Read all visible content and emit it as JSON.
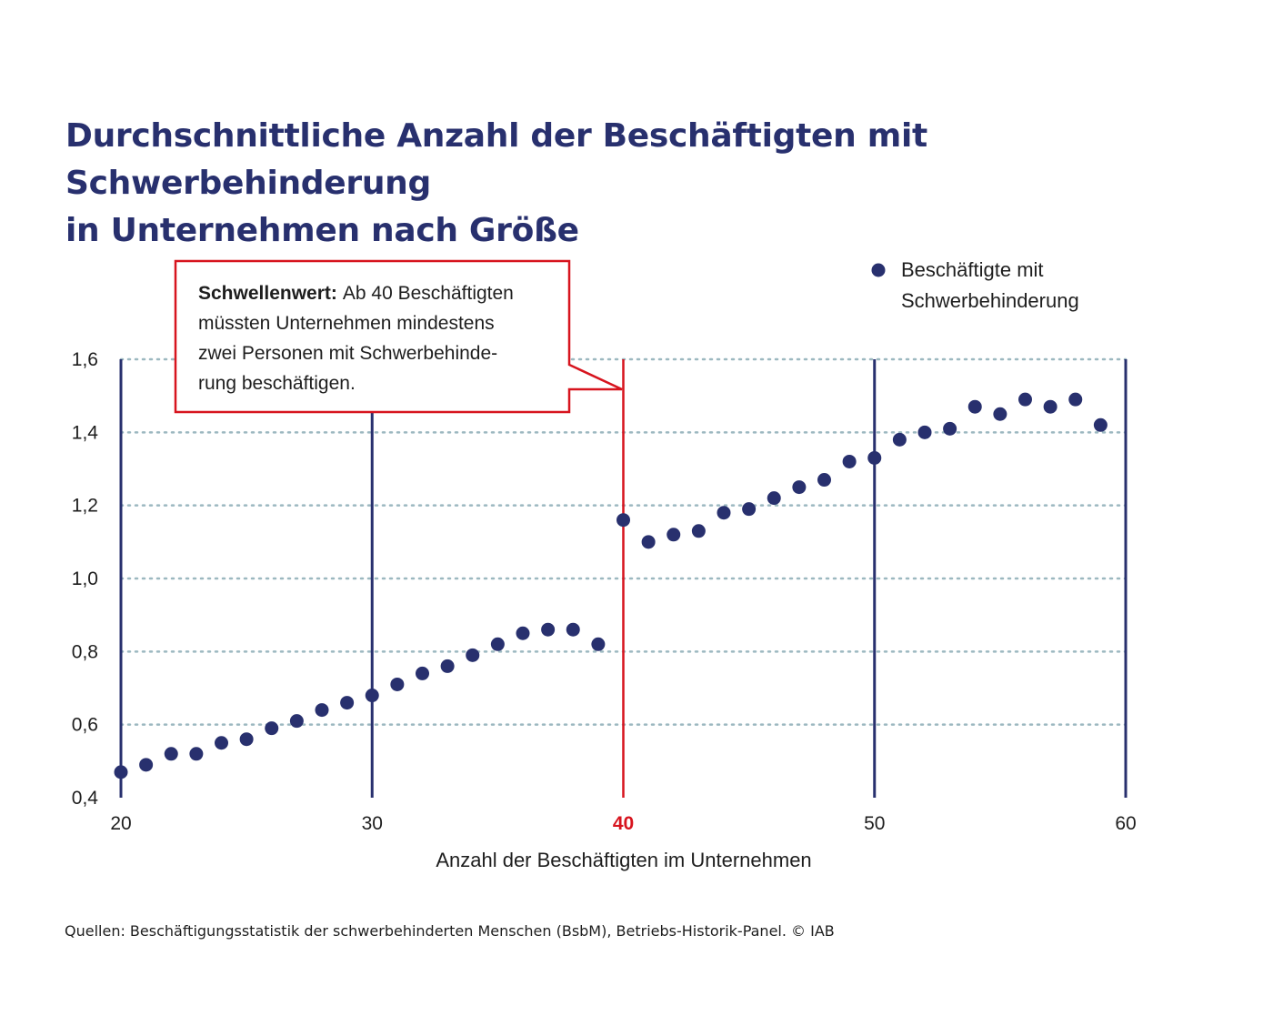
{
  "title": {
    "line1": "Durchschnittliche Anzahl der Beschäftigten mit Schwerbehinderung",
    "line2": "in Unternehmen nach Größe"
  },
  "source": "Quellen: Beschäftigungsstatistik der schwerbehinderten Menschen (BsbM), Betriebs-Historik-Panel. © IAB",
  "colors": {
    "navy": "#28306e",
    "threshold_red": "#d7141e",
    "grid": "#9cb8c0",
    "text": "#1e1e1e"
  },
  "annotation": {
    "bold": "Schwellenwert:",
    "lines": [
      "Ab 40 Beschäftigten",
      "müssten Unternehmen mindestens",
      "zwei Personen mit Schwerbehinde-",
      "rung beschäftigen."
    ]
  },
  "chart_data": {
    "type": "scatter",
    "xlabel": "Anzahl der Beschäftigten im Unternehmen",
    "ylabel": "",
    "xlim": [
      20,
      60
    ],
    "ylim": [
      0.4,
      1.6
    ],
    "x_ticks": [
      20,
      30,
      40,
      50,
      60
    ],
    "x_tick_labels": [
      "20",
      "30",
      "40",
      "50",
      "60"
    ],
    "highlight_tick": 40,
    "y_ticks": [
      0.4,
      0.6,
      0.8,
      1.0,
      1.2,
      1.4,
      1.6
    ],
    "y_tick_labels": [
      "0,4",
      "0,6",
      "0,8",
      "1,0",
      "1,2",
      "1,4",
      "1,6"
    ],
    "vertical_lines": [
      20,
      30,
      50,
      60
    ],
    "threshold": 40,
    "grid": true,
    "legend_position": "top-right",
    "series": [
      {
        "name": "Beschäftigte mit Schwerbehinderung",
        "x": [
          20,
          21,
          22,
          23,
          24,
          25,
          26,
          27,
          28,
          29,
          30,
          31,
          32,
          33,
          34,
          35,
          36,
          37,
          38,
          39,
          40,
          41,
          42,
          43,
          44,
          45,
          46,
          47,
          48,
          49,
          50,
          51,
          52,
          53,
          54,
          55,
          56,
          57,
          58,
          59
        ],
        "y": [
          0.47,
          0.49,
          0.52,
          0.52,
          0.55,
          0.56,
          0.59,
          0.61,
          0.64,
          0.66,
          0.68,
          0.71,
          0.74,
          0.76,
          0.79,
          0.82,
          0.85,
          0.86,
          0.86,
          0.82,
          1.16,
          1.1,
          1.12,
          1.13,
          1.18,
          1.19,
          1.22,
          1.25,
          1.27,
          1.32,
          1.33,
          1.38,
          1.4,
          1.41,
          1.47,
          1.45,
          1.49,
          1.47,
          1.49,
          1.42
        ]
      }
    ]
  }
}
